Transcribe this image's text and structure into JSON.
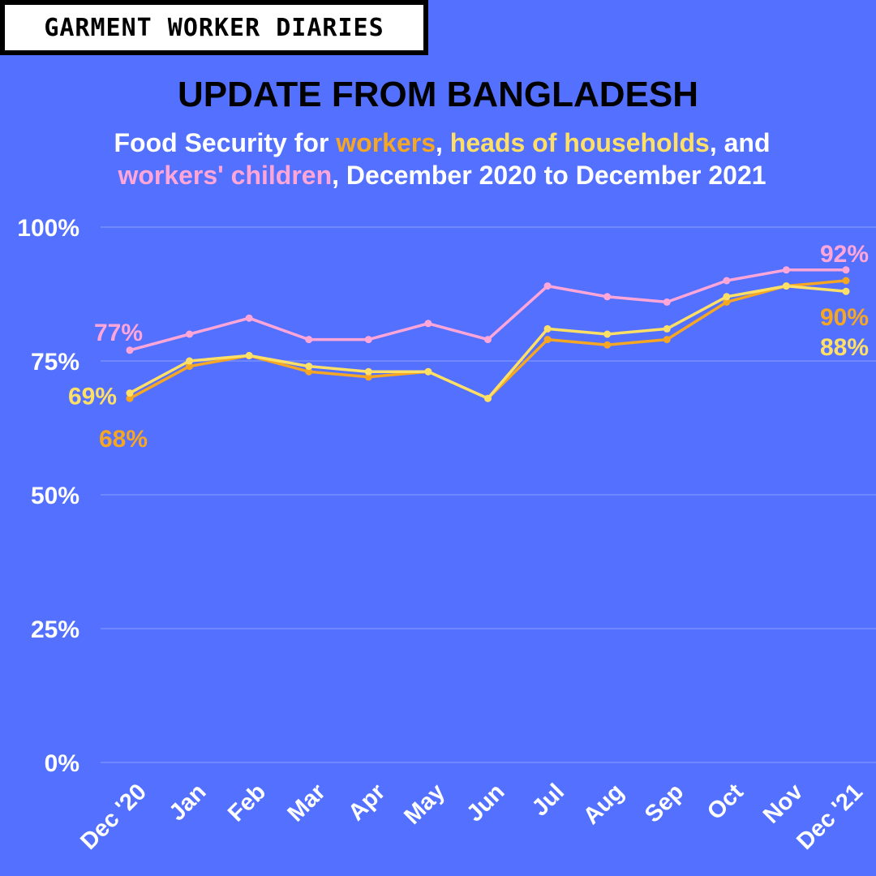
{
  "header": {
    "brand": "GARMENT WORKER DIARIES",
    "title": "UPDATE FROM BANGLADESH",
    "subtitle": {
      "p1": "Food Security for ",
      "workers": "workers",
      "p2": ", ",
      "heads": "heads of households",
      "p3": ",  and",
      "children": "workers' children",
      "p4": ", December 2020 to December 2021"
    }
  },
  "colors": {
    "background": "#5370FF",
    "workers": "#F5A623",
    "heads": "#FFE066",
    "children": "#FFA6D9",
    "grid": "#7A90FF",
    "text": "#FFFFFF"
  },
  "chart_data": {
    "type": "line",
    "categories": [
      "Dec '20",
      "Jan",
      "Feb",
      "Mar",
      "Apr",
      "May",
      "Jun",
      "Jul",
      "Aug",
      "Sep",
      "Oct",
      "Nov",
      "Dec '21"
    ],
    "yticks": [
      "0%",
      "25%",
      "50%",
      "75%",
      "100%"
    ],
    "ytick_values": [
      0,
      25,
      50,
      75,
      100
    ],
    "ylim": [
      0,
      100
    ],
    "grid": true,
    "series": [
      {
        "name": "workers' children",
        "color": "#FFA6D9",
        "values": [
          77,
          80,
          83,
          79,
          79,
          82,
          79,
          89,
          87,
          86,
          90,
          92,
          92
        ]
      },
      {
        "name": "workers",
        "color": "#F5A623",
        "values": [
          68,
          74,
          76,
          73,
          72,
          73,
          68,
          79,
          78,
          79,
          86,
          89,
          90
        ]
      },
      {
        "name": "heads of households",
        "color": "#FFE066",
        "values": [
          69,
          75,
          76,
          74,
          73,
          73,
          68,
          81,
          80,
          81,
          87,
          89,
          88
        ]
      }
    ],
    "annotations": [
      {
        "text": "77%",
        "series": "workers' children",
        "point": "Dec '20",
        "color": "#FFA6D9"
      },
      {
        "text": "69%",
        "series": "heads of households",
        "point": "Dec '20",
        "color": "#FFE066"
      },
      {
        "text": "68%",
        "series": "workers",
        "point": "Dec '20",
        "color": "#F5A623"
      },
      {
        "text": "92%",
        "series": "workers' children",
        "point": "Dec '21",
        "color": "#FFA6D9"
      },
      {
        "text": "90%",
        "series": "workers",
        "point": "Dec '21",
        "color": "#F5A623"
      },
      {
        "text": "88%",
        "series": "heads of households",
        "point": "Dec '21",
        "color": "#FFE066"
      }
    ]
  }
}
